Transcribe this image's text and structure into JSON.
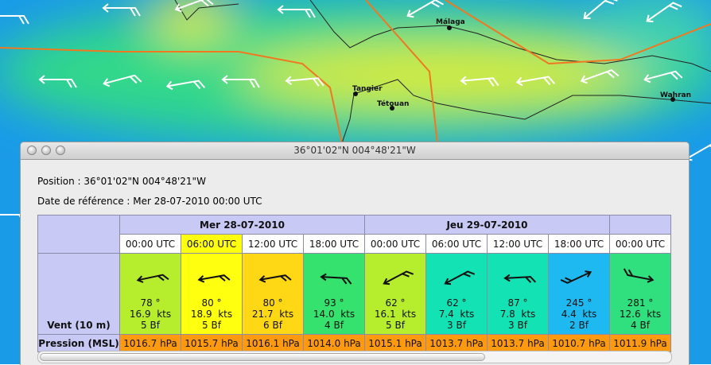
{
  "map": {
    "labels": [
      "Málaga",
      "Tangier",
      "Tétouan",
      "Wahran"
    ]
  },
  "window": {
    "title": "36°01'02\"N  004°48'21\"W",
    "position": "Position :  36°01'02\"N  004°48'21\"W",
    "reference_date": "Date de référence : Mer 28-07-2010 00:00 UTC"
  },
  "table": {
    "days": [
      "Mer 28-07-2010",
      "Jeu 29-07-2010"
    ],
    "row_labels": [
      "Vent (10 m)",
      "Pression (MSL)"
    ],
    "columns": [
      {
        "time": "00:00 UTC",
        "direction": "78 °",
        "speed": "16.9  kts",
        "beaufort": "5 Bf",
        "pressure": "1016.7 hPa",
        "color": "#b6ee2e"
      },
      {
        "time": "06:00 UTC",
        "direction": "80 °",
        "speed": "18.9  kts",
        "beaufort": "5 Bf",
        "pressure": "1015.7 hPa",
        "color": "#ffff10"
      },
      {
        "time": "12:00 UTC",
        "direction": "80 °",
        "speed": "21.7  kts",
        "beaufort": "6 Bf",
        "pressure": "1016.1 hPa",
        "color": "#ffd815"
      },
      {
        "time": "18:00 UTC",
        "direction": "93 °",
        "speed": "14.0  kts",
        "beaufort": "4 Bf",
        "pressure": "1014.0 hPa",
        "color": "#35e26e"
      },
      {
        "time": "00:00 UTC",
        "direction": "62 °",
        "speed": "16.1  kts",
        "beaufort": "5 Bf",
        "pressure": "1015.1 hPa",
        "color": "#b6ee2e"
      },
      {
        "time": "06:00 UTC",
        "direction": "62 °",
        "speed": "7.4  kts",
        "beaufort": "3 Bf",
        "pressure": "1013.7 hPa",
        "color": "#12e2b4"
      },
      {
        "time": "12:00 UTC",
        "direction": "87 °",
        "speed": "7.8  kts",
        "beaufort": "3 Bf",
        "pressure": "1013.7 hPa",
        "color": "#12e2b4"
      },
      {
        "time": "18:00 UTC",
        "direction": "245 °",
        "speed": "4.4  kts",
        "beaufort": "2 Bf",
        "pressure": "1010.7 hPa",
        "color": "#1fb9f2"
      },
      {
        "time": "00:00 UTC",
        "direction": "281 °",
        "speed": "12.6  kts",
        "beaufort": "4 Bf",
        "pressure": "1011.9 hPa",
        "color": "#30e07e"
      }
    ]
  }
}
